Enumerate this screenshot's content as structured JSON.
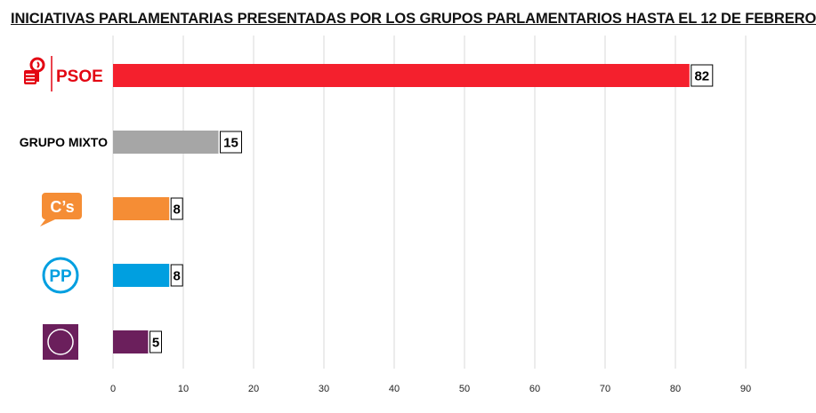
{
  "chart_data": {
    "type": "bar",
    "orientation": "horizontal",
    "title": "INICIATIVAS PARLAMENTARIAS PRESENTADAS POR LOS GRUPOS PARLAMENTARIOS HASTA EL 12 DE FEBRERO",
    "categories": [
      "PSOE",
      "GRUPO MIXTO",
      "C's",
      "PP",
      ""
    ],
    "category_display": [
      "psoe-logo",
      "text",
      "cs-logo",
      "pp-logo",
      "podemos-logo"
    ],
    "values": [
      82,
      15,
      8,
      8,
      5
    ],
    "value_labels": [
      "82",
      "15",
      "8",
      "8",
      "5"
    ],
    "colors": [
      "#f4202d",
      "#a6a6a6",
      "#f58d35",
      "#009fe0",
      "#6b1f5c"
    ],
    "xlim": [
      0,
      90
    ],
    "xticks": [
      "0",
      "10",
      "20",
      "30",
      "40",
      "50",
      "60",
      "70",
      "80",
      "90"
    ],
    "grid": true,
    "legend": "none",
    "xlabel": "",
    "ylabel": ""
  },
  "logos": {
    "psoe_text": "PSOE",
    "cs_text": "C’s",
    "pp_text": "PP"
  }
}
